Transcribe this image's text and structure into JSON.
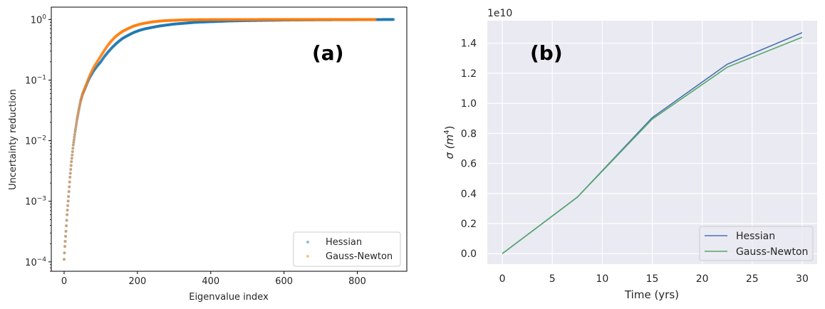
{
  "chart_data": [
    {
      "panel": "a",
      "type": "scatter",
      "title": "",
      "annotation": "(a)",
      "xlabel": "Eigenvalue index",
      "ylabel": "Uncertainty reduction",
      "xscale": "linear",
      "yscale": "log",
      "xlim": [
        -35,
        935
      ],
      "ylim": [
        7e-05,
        1.6
      ],
      "xticks": [
        0,
        200,
        400,
        600,
        800
      ],
      "xtick_labels": [
        "0",
        "200",
        "400",
        "600",
        "800"
      ],
      "yticks": [
        0.0001,
        0.001,
        0.01,
        0.1,
        1
      ],
      "ytick_base": "10",
      "ytick_exponents": [
        "−4",
        "−3",
        "−2",
        "−1",
        "0"
      ],
      "grid": false,
      "legend": {
        "position": "lower-right"
      },
      "series": [
        {
          "name": "Hessian",
          "color": "#1f77b4",
          "n_points": 900,
          "x": [
            0,
            2,
            5,
            8,
            12,
            16,
            20,
            25,
            30,
            35,
            40,
            45,
            50,
            55,
            60,
            65,
            70,
            80,
            90,
            100,
            110,
            120,
            130,
            140,
            150,
            160,
            175,
            190,
            205,
            220,
            240,
            260,
            280,
            300,
            330,
            360,
            400,
            450,
            500,
            550,
            600,
            700,
            800,
            900
          ],
          "y": [
            0.00011,
            0.00018,
            0.00032,
            0.0006,
            0.0012,
            0.0025,
            0.0045,
            0.0085,
            0.014,
            0.022,
            0.032,
            0.045,
            0.058,
            0.068,
            0.08,
            0.095,
            0.11,
            0.14,
            0.17,
            0.2,
            0.245,
            0.29,
            0.34,
            0.39,
            0.44,
            0.49,
            0.55,
            0.61,
            0.66,
            0.7,
            0.74,
            0.78,
            0.81,
            0.84,
            0.87,
            0.9,
            0.92,
            0.945,
            0.96,
            0.97,
            0.98,
            0.99,
            0.995,
            1.0
          ]
        },
        {
          "name": "Gauss-Newton",
          "color": "#ff7f0e",
          "n_points": 850,
          "x": [
            0,
            2,
            5,
            8,
            12,
            16,
            20,
            25,
            30,
            35,
            40,
            45,
            50,
            55,
            60,
            65,
            70,
            80,
            90,
            100,
            110,
            120,
            130,
            140,
            150,
            160,
            175,
            190,
            205,
            220,
            240,
            260,
            280,
            300,
            330,
            350,
            400,
            450,
            500,
            600,
            700,
            800,
            850
          ],
          "y": [
            0.00011,
            0.00018,
            0.00032,
            0.0006,
            0.0012,
            0.0025,
            0.0045,
            0.0085,
            0.014,
            0.022,
            0.032,
            0.045,
            0.058,
            0.07,
            0.083,
            0.1,
            0.12,
            0.16,
            0.2,
            0.25,
            0.31,
            0.38,
            0.45,
            0.52,
            0.58,
            0.64,
            0.71,
            0.78,
            0.83,
            0.87,
            0.91,
            0.94,
            0.96,
            0.97,
            0.985,
            0.99,
            0.995,
            0.997,
            0.998,
            0.999,
            1.0,
            1.0,
            1.0
          ]
        }
      ]
    },
    {
      "panel": "b",
      "type": "line",
      "title": "",
      "annotation": "(b)",
      "xlabel": "Time (yrs)",
      "ylabel_symbol": "σ",
      "ylabel_unit": "(m",
      "ylabel_exp": "4",
      "ylabel_close": ")",
      "offset_text": "1e10",
      "xlim": [
        -1.5,
        31.5
      ],
      "ylim": [
        -0.07,
        1.55
      ],
      "xticks": [
        0,
        5,
        10,
        15,
        20,
        25,
        30
      ],
      "xtick_labels": [
        "0",
        "5",
        "10",
        "15",
        "20",
        "25",
        "30"
      ],
      "yticks": [
        0.0,
        0.2,
        0.4,
        0.6,
        0.8,
        1.0,
        1.2,
        1.4
      ],
      "ytick_labels": [
        "0.0",
        "0.2",
        "0.4",
        "0.6",
        "0.8",
        "1.0",
        "1.2",
        "1.4"
      ],
      "grid": true,
      "legend": {
        "position": "lower-right"
      },
      "x": [
        0,
        7.5,
        15,
        22.5,
        30
      ],
      "series": [
        {
          "name": "Hessian",
          "color": "#4c72b0",
          "values": [
            0.0,
            0.375,
            0.905,
            1.26,
            1.47
          ]
        },
        {
          "name": "Gauss-Newton",
          "color": "#55a868",
          "values": [
            0.0,
            0.375,
            0.895,
            1.24,
            1.44
          ]
        }
      ]
    }
  ]
}
